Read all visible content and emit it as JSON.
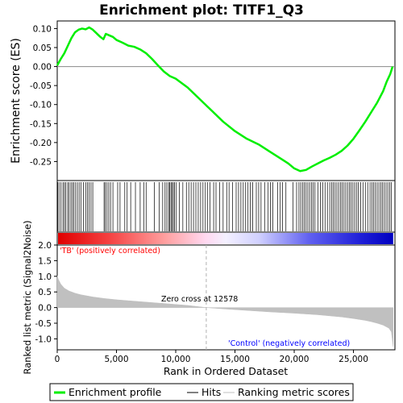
{
  "chart_data": {
    "type": "line",
    "title": "Enrichment plot: TITF1_Q3",
    "xlabel": "Rank in Ordered Dataset",
    "es_ylabel": "Enrichment score (ES)",
    "metric_ylabel": "Ranked list metric (Signal2Noise)",
    "xlim": [
      0,
      28500
    ],
    "x_ticks": [
      0,
      5000,
      10000,
      15000,
      20000,
      25000
    ],
    "x_tick_labels": [
      "0",
      "5,000",
      "10,000",
      "15,000",
      "20,000",
      "25,000"
    ],
    "es_ylim": [
      -0.3,
      0.12
    ],
    "es_ticks": [
      0.1,
      0.05,
      0.0,
      -0.05,
      -0.1,
      -0.15,
      -0.2,
      -0.25
    ],
    "es_tick_labels": [
      "0.10",
      "0.05",
      "0.00",
      "-0.05",
      "-0.10",
      "-0.15",
      "-0.20",
      "-0.25"
    ],
    "metric_ylim": [
      -1.35,
      2.0
    ],
    "metric_ticks": [
      2.0,
      1.5,
      1.0,
      0.5,
      0.0,
      -0.5,
      -1.0
    ],
    "metric_tick_labels": [
      "2.0",
      "1.5",
      "1.0",
      "0.5",
      "0.0",
      "-0.5",
      "-1.0"
    ],
    "es_profile": {
      "name": "Enrichment profile",
      "x": [
        0,
        300,
        600,
        900,
        1200,
        1500,
        1800,
        2100,
        2400,
        2700,
        3000,
        3300,
        3600,
        3900,
        4100,
        4400,
        4700,
        5000,
        5500,
        6000,
        6500,
        7000,
        7500,
        8000,
        8500,
        9000,
        9500,
        10000,
        11000,
        12000,
        13000,
        14000,
        15000,
        16000,
        17000,
        18000,
        19000,
        19500,
        20000,
        20500,
        21000,
        21500,
        22000,
        22500,
        23000,
        23500,
        24000,
        24500,
        25000,
        25500,
        26000,
        26500,
        27000,
        27500,
        27800,
        28100,
        28300
      ],
      "y": [
        0.003,
        0.02,
        0.035,
        0.055,
        0.075,
        0.09,
        0.097,
        0.1,
        0.098,
        0.103,
        0.097,
        0.088,
        0.079,
        0.072,
        0.086,
        0.082,
        0.078,
        0.07,
        0.063,
        0.055,
        0.052,
        0.045,
        0.035,
        0.02,
        0.003,
        -0.013,
        -0.025,
        -0.032,
        -0.055,
        -0.085,
        -0.115,
        -0.145,
        -0.17,
        -0.19,
        -0.205,
        -0.225,
        -0.245,
        -0.255,
        -0.268,
        -0.275,
        -0.272,
        -0.263,
        -0.255,
        -0.247,
        -0.24,
        -0.232,
        -0.222,
        -0.208,
        -0.19,
        -0.168,
        -0.145,
        -0.12,
        -0.095,
        -0.065,
        -0.04,
        -0.02,
        0.0
      ]
    },
    "hits_label": "Hits",
    "metric_label": "Ranking metric scores",
    "hit_ranks": [
      40,
      150,
      320,
      480,
      600,
      720,
      880,
      1000,
      1150,
      1280,
      1400,
      1550,
      1700,
      1850,
      2000,
      2200,
      2400,
      2550,
      2700,
      2850,
      3000,
      3950,
      4050,
      4200,
      4350,
      4500,
      4700,
      5100,
      5300,
      5700,
      5900,
      6200,
      6600,
      7000,
      7300,
      7500,
      8200,
      8600,
      8900,
      9100,
      9250,
      9400,
      9500,
      9600,
      9700,
      9800,
      9900,
      10050,
      10300,
      10600,
      10900,
      11100,
      11300,
      11500,
      11700,
      11900,
      12100,
      12300,
      12500,
      12700,
      12900,
      13200,
      13400,
      13700,
      14000,
      14300,
      14500,
      14800,
      15100,
      15300,
      15500,
      15700,
      15900,
      16100,
      16300,
      16500,
      16800,
      17000,
      17200,
      17500,
      17800,
      18000,
      18200,
      18600,
      18800,
      19000,
      19300,
      19900,
      20200,
      20400,
      20550,
      20700,
      20850,
      21000,
      21150,
      21300,
      21450,
      21600,
      21750,
      22000,
      22200,
      22400,
      22600,
      22800,
      23000,
      23150,
      23300,
      23450,
      23600,
      23750,
      23900,
      24050,
      24200,
      24350,
      24500,
      24650,
      24800,
      24950,
      25100,
      25250,
      25400,
      25600,
      25800,
      26000,
      26200,
      26400,
      26550,
      26700,
      26850,
      27000,
      27150,
      27300,
      27450,
      27600,
      27750,
      27900,
      28050,
      28200
    ],
    "metric_profile": {
      "x": [
        0,
        100,
        300,
        600,
        1000,
        1500,
        2000,
        3000,
        4000,
        5000,
        6000,
        7000,
        8000,
        9000,
        10000,
        11000,
        12578,
        14000,
        16000,
        18000,
        20000,
        22000,
        24000,
        25000,
        26000,
        26500,
        27000,
        27500,
        28000,
        28200,
        28350
      ],
      "y": [
        1.02,
        0.9,
        0.75,
        0.62,
        0.53,
        0.46,
        0.41,
        0.34,
        0.29,
        0.25,
        0.22,
        0.19,
        0.16,
        0.13,
        0.1,
        0.07,
        0.0,
        -0.04,
        -0.09,
        -0.14,
        -0.18,
        -0.23,
        -0.3,
        -0.35,
        -0.41,
        -0.45,
        -0.5,
        -0.56,
        -0.66,
        -0.78,
        -1.25
      ]
    },
    "zero_cross_rank": 12578,
    "annotations": {
      "positive": "'TB' (positively correlated)",
      "negative": "'Control' (negatively correlated)",
      "zero_cross": "Zero cross at 12578"
    },
    "colors": {
      "es_line": "#00ee00",
      "hit_line": "#000000",
      "metric_fill": "#c0c0c0",
      "zero_cross_line": "#b0b0b0",
      "positive_text": "#ff0000",
      "negative_text": "#0000ff",
      "bar_red": "#ff0000",
      "bar_blue": "#0000ff"
    },
    "legend": [
      {
        "key": "es",
        "label": "Enrichment profile"
      },
      {
        "key": "hits",
        "label": "Hits"
      },
      {
        "key": "metric",
        "label": "Ranking metric scores"
      }
    ]
  }
}
